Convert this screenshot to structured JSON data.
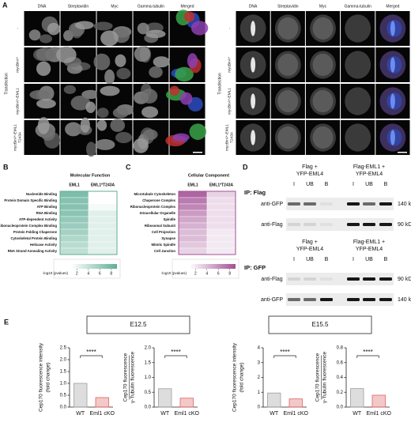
{
  "panel_a": {
    "label": "A",
    "column_colors": [
      "#3f68c9",
      "#2e9e46",
      "#b9252c",
      "#8e57b0",
      "#111111"
    ],
    "left": {
      "columns": [
        "DNA",
        "Streptavidin",
        "Myc",
        "Gamma-tubulin",
        "Merged"
      ],
      "group_label": "Transfection",
      "rows": [
        [
          "-"
        ],
        [
          "mycBirA*"
        ],
        [
          "mycBirA*-EML1"
        ],
        [
          "mycBirA*-EML1",
          "T243A"
        ]
      ]
    },
    "right": {
      "columns": [
        "DNA",
        "Streptavidin",
        "Myc",
        "Gamma-tubulin",
        "Merged"
      ],
      "group_label": "Transfection",
      "rows": [
        [
          "-"
        ],
        [
          "mycBirA*"
        ],
        [
          "mycBirA*-EML1"
        ],
        [
          "mycBirA*-EML1",
          "T243A"
        ]
      ]
    }
  },
  "panel_b": {
    "label": "B",
    "title": "Molecular Function",
    "columns": [
      "EML1",
      "EML1*T243A"
    ],
    "rows": [
      "Nucleotide Binding",
      "Protein Domain Specific Binding",
      "ATP Binding",
      "RNA Binding",
      "ATP-dependent Activity",
      "Ribonucleoprotein Complex Binding",
      "Protein Folding Chaperone",
      "Cytoskeletal Protein Binding",
      "Helicase Activity",
      "RNA Strand Annealing Activity"
    ],
    "values": [
      [
        7.5,
        1
      ],
      [
        7,
        1
      ],
      [
        7,
        1.5
      ],
      [
        6.8,
        2.5
      ],
      [
        6.3,
        2.5
      ],
      [
        6,
        2.5
      ],
      [
        5.5,
        2.5
      ],
      [
        5,
        2.5
      ],
      [
        4.5,
        2.5
      ],
      [
        4.2,
        2.5
      ]
    ],
    "color": "#5fae95",
    "legend_title": "-log10 (pvalues)",
    "legend_ticks": [
      2,
      4,
      6,
      8
    ],
    "scale_lim": [
      1,
      9
    ]
  },
  "panel_c": {
    "label": "C",
    "title": "Cellular Component",
    "columns": [
      "EML1",
      "EML1*T243A"
    ],
    "rows": [
      "Microtubule Cytoskeleton",
      "Chaperone Complex",
      "Ribonucleoprotein Complex",
      "Intracellular Organelle",
      "Spindle",
      "Ribosomal Subunit",
      "Cell Projection",
      "Synapse",
      "Mitotic Spindle",
      "Cell Junction"
    ],
    "values": [
      [
        8,
        3
      ],
      [
        7,
        2.5
      ],
      [
        6.5,
        2.5
      ],
      [
        5.5,
        2.5
      ],
      [
        5,
        2.5
      ],
      [
        4.5,
        2.5
      ],
      [
        4,
        2
      ],
      [
        4,
        2
      ],
      [
        3.5,
        2
      ],
      [
        3,
        2
      ]
    ],
    "color": "#a24f95",
    "legend_title": "-log10 (pvalues)",
    "legend_ticks": [
      2,
      4,
      6,
      8
    ],
    "scale_lim": [
      1,
      9
    ]
  },
  "panel_d": {
    "label": "D",
    "blocks": [
      {
        "groups": [
          [
            "Flag +",
            "YFP-EML4"
          ],
          [
            "Flag-EML1 +",
            "YFP-EML4"
          ]
        ],
        "lanes": [
          "I",
          "UB",
          "B",
          "I",
          "UB",
          "B"
        ],
        "ip": "IP: Flag",
        "blots": [
          {
            "antibody": "anti-GFP",
            "size": "140 kDa"
          },
          {
            "antibody": "anti-Flag",
            "size": "90 kDa"
          }
        ]
      },
      {
        "groups": [
          [
            "Flag +",
            "YFP-EML4"
          ],
          [
            "Flag-EML1 +",
            "YFP-EML4"
          ]
        ],
        "lanes": [
          "I",
          "UB",
          "B",
          "I",
          "UB",
          "B"
        ],
        "ip": "IP: GFP",
        "blots": [
          {
            "antibody": "anti-Flag",
            "size": "90 kDa"
          },
          {
            "antibody": "anti-GFP",
            "size": "140 kDa"
          }
        ]
      }
    ]
  },
  "panel_e": {
    "label": "E",
    "stages": [
      "E12.5",
      "E15.5"
    ],
    "charts": [
      {
        "type": "bar",
        "ylabel": [
          "Cep170 fluorescence intensity",
          "(fold change)"
        ],
        "ratio": false,
        "categories": [
          "WT",
          "Eml1 cKO"
        ],
        "values": [
          1.0,
          0.4
        ],
        "colors": [
          "#9e9e9e",
          "#e06262"
        ],
        "annotation": "****",
        "ylim": [
          0,
          2.5
        ],
        "yticks": [
          {
            "value": 0,
            "label": "0.0"
          },
          0.5,
          {
            "value": 1,
            "label": "1.0"
          },
          1.5,
          {
            "value": 2,
            "label": "2.0"
          },
          2.5
        ]
      },
      {
        "type": "bar",
        "ylabel": [
          "Cep170 fluorescence",
          "γ-Tubulin fluorescence"
        ],
        "ratio": true,
        "categories": [
          "WT",
          "Eml1 cKO"
        ],
        "values": [
          0.62,
          0.3
        ],
        "colors": [
          "#9e9e9e",
          "#e06262"
        ],
        "annotation": "****",
        "ylim": [
          0,
          2
        ],
        "yticks": [
          {
            "value": 0,
            "label": "0.0"
          },
          0.5,
          {
            "value": 1,
            "label": "1.0"
          },
          1.5,
          {
            "value": 2,
            "label": "2.0"
          }
        ]
      },
      {
        "type": "bar",
        "ylabel": [
          "Cep170 fluorescence intensity",
          "(fold change)"
        ],
        "ratio": false,
        "categories": [
          "WT",
          "Eml1 cKO"
        ],
        "values": [
          0.95,
          0.55
        ],
        "colors": [
          "#9e9e9e",
          "#e06262"
        ],
        "annotation": "****",
        "ylim": [
          0,
          4
        ],
        "yticks": [
          0,
          1,
          2,
          3,
          4
        ]
      },
      {
        "type": "bar",
        "ylabel": [
          "Cep170 fluorescence",
          "γ-Tubulin fluorescence"
        ],
        "ratio": true,
        "categories": [
          "WT",
          "Eml1 cKO"
        ],
        "values": [
          0.25,
          0.16
        ],
        "colors": [
          "#9e9e9e",
          "#e06262"
        ],
        "annotation": "****",
        "ylim": [
          0,
          0.8
        ],
        "yticks": [
          {
            "value": 0,
            "label": "0.0"
          },
          0.2,
          0.4,
          0.6,
          0.8
        ]
      }
    ]
  }
}
